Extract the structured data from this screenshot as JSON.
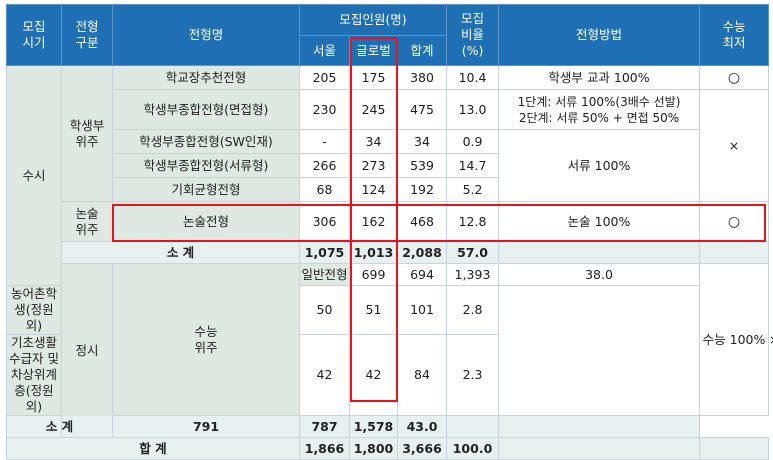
{
  "header": {
    "period": "모집\n시기",
    "type": "전형\n구분",
    "name": "전형명",
    "quota": "모집인원(명)",
    "seoul": "서울",
    "global": "글로벌",
    "sum": "합계",
    "ratio": "모집\n비율\n(%)",
    "method": "전형방법",
    "min": "수능\n최저"
  },
  "groups": {
    "susi": "수시",
    "jeongsi": "정시",
    "student": "학생부\n위주",
    "essay": "논술\n위주",
    "csat": "수능\n위주"
  },
  "rows": [
    {
      "name": "학교장추천전형",
      "seoul": "205",
      "global": "175",
      "sum": "380",
      "ratio": "10.4",
      "method": "학생부 교과 100%",
      "min": "○"
    },
    {
      "name": "학생부종합전형(면접형)",
      "seoul": "230",
      "global": "245",
      "sum": "475",
      "ratio": "13.0",
      "method": "1단계: 서류 100%(3배수 선발)\n2단계: 서류 50% + 면접 50%",
      "min": "×"
    },
    {
      "name": "학생부종합전형(SW인재)",
      "seoul": "-",
      "global": "34",
      "sum": "34",
      "ratio": "0.9",
      "method": "서류 100%"
    },
    {
      "name": "학생부종합전형(서류형)",
      "seoul": "266",
      "global": "273",
      "sum": "539",
      "ratio": "14.7"
    },
    {
      "name": "기회균형전형",
      "seoul": "68",
      "global": "124",
      "sum": "192",
      "ratio": "5.2"
    },
    {
      "name": "논술전형",
      "seoul": "306",
      "global": "162",
      "sum": "468",
      "ratio": "12.8",
      "method": "논술 100%",
      "min": "○"
    },
    {
      "name": "일반전형",
      "seoul": "699",
      "global": "694",
      "sum": "1,393",
      "ratio": "38.0",
      "method": "수능 100%",
      "min": "×"
    },
    {
      "name": "농어촌학생(정원외)",
      "seoul": "50",
      "global": "51",
      "sum": "101",
      "ratio": "2.8"
    },
    {
      "name": "기초생활수급자 및\n차상위계층(정원외)",
      "seoul": "42",
      "global": "42",
      "sum": "84",
      "ratio": "2.3"
    }
  ],
  "subtotal1": {
    "label": "소 계",
    "seoul": "1,075",
    "global": "1,013",
    "sum": "2,088",
    "ratio": "57.0"
  },
  "subtotal2": {
    "label": "소 계",
    "seoul": "791",
    "global": "787",
    "sum": "1,578",
    "ratio": "43.0"
  },
  "total": {
    "label": "합 계",
    "seoul": "1,866",
    "global": "1,800",
    "sum": "3,666",
    "ratio": "100.0"
  },
  "colors": {
    "header": "#1f6fb4",
    "highlight": "#e5141e",
    "group_bg": "#dde9e2",
    "subtotal_bg": "#e6f1f0"
  }
}
